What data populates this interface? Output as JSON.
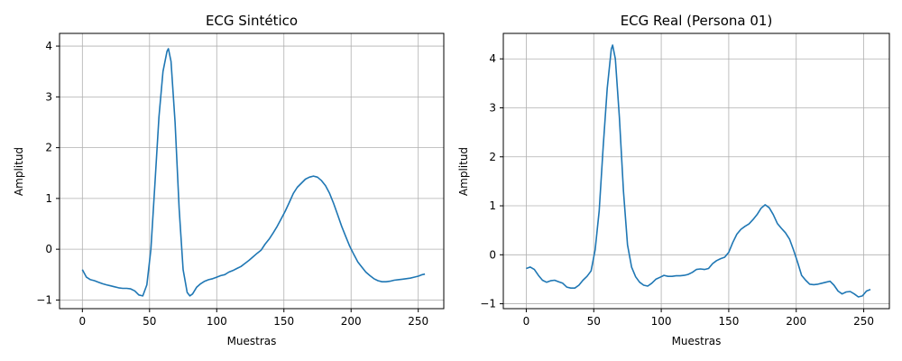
{
  "chart_data": [
    {
      "type": "line",
      "title": "ECG Sintético",
      "xlabel": "Muestras",
      "ylabel": "Amplitud",
      "xlim": [
        -17,
        269
      ],
      "ylim": [
        -1.17,
        4.25
      ],
      "xticks": [
        0,
        50,
        100,
        150,
        200,
        250
      ],
      "yticks": [
        -1,
        0,
        1,
        2,
        3,
        4
      ],
      "grid": true,
      "line_color": "#1f77b4",
      "series": [
        {
          "x": [
            0,
            3,
            6,
            9,
            12,
            15,
            18,
            21,
            24,
            27,
            30,
            33,
            36,
            39,
            42,
            45,
            48,
            51,
            54,
            57,
            60,
            63,
            64,
            66,
            69,
            72,
            75,
            78,
            80,
            82,
            85,
            88,
            91,
            94,
            97,
            100,
            103,
            106,
            109,
            112,
            115,
            118,
            121,
            124,
            127,
            130,
            133,
            136,
            139,
            142,
            145,
            148,
            151,
            154,
            157,
            160,
            163,
            166,
            169,
            172,
            175,
            178,
            181,
            184,
            187,
            190,
            193,
            196,
            199,
            202,
            205,
            208,
            211,
            214,
            217,
            220,
            223,
            226,
            229,
            232,
            235,
            238,
            241,
            244,
            247,
            250,
            253,
            255
          ],
          "y": [
            -0.4,
            -0.55,
            -0.6,
            -0.62,
            -0.65,
            -0.68,
            -0.7,
            -0.72,
            -0.74,
            -0.76,
            -0.77,
            -0.77,
            -0.78,
            -0.82,
            -0.9,
            -0.92,
            -0.7,
            0.0,
            1.3,
            2.6,
            3.5,
            3.9,
            3.95,
            3.7,
            2.5,
            0.8,
            -0.4,
            -0.85,
            -0.92,
            -0.88,
            -0.75,
            -0.68,
            -0.63,
            -0.6,
            -0.58,
            -0.55,
            -0.52,
            -0.5,
            -0.45,
            -0.42,
            -0.38,
            -0.34,
            -0.28,
            -0.22,
            -0.15,
            -0.08,
            -0.02,
            0.1,
            0.2,
            0.32,
            0.45,
            0.6,
            0.75,
            0.92,
            1.1,
            1.22,
            1.3,
            1.38,
            1.42,
            1.44,
            1.42,
            1.35,
            1.25,
            1.1,
            0.9,
            0.68,
            0.45,
            0.25,
            0.06,
            -0.1,
            -0.25,
            -0.35,
            -0.45,
            -0.52,
            -0.58,
            -0.62,
            -0.64,
            -0.64,
            -0.63,
            -0.61,
            -0.6,
            -0.59,
            -0.58,
            -0.57,
            -0.55,
            -0.53,
            -0.5,
            -0.49
          ]
        }
      ]
    },
    {
      "type": "line",
      "title": "ECG Real (Persona 01)",
      "xlabel": "Muestras",
      "ylabel": "Amplitud",
      "xlim": [
        -17,
        269
      ],
      "ylim": [
        -1.1,
        4.52
      ],
      "xticks": [
        0,
        50,
        100,
        150,
        200,
        250
      ],
      "yticks": [
        -1,
        0,
        1,
        2,
        3,
        4
      ],
      "grid": true,
      "line_color": "#1f77b4",
      "series": [
        {
          "x": [
            0,
            3,
            6,
            9,
            12,
            15,
            18,
            21,
            24,
            27,
            30,
            33,
            36,
            39,
            42,
            45,
            48,
            51,
            54,
            57,
            60,
            63,
            64,
            66,
            69,
            72,
            75,
            78,
            81,
            84,
            87,
            90,
            93,
            96,
            99,
            102,
            105,
            108,
            111,
            114,
            117,
            120,
            123,
            126,
            129,
            132,
            135,
            138,
            141,
            144,
            147,
            150,
            153,
            156,
            159,
            162,
            165,
            168,
            171,
            174,
            177,
            180,
            183,
            186,
            189,
            192,
            195,
            198,
            201,
            204,
            207,
            210,
            213,
            216,
            219,
            222,
            225,
            228,
            231,
            234,
            237,
            240,
            243,
            246,
            249,
            252,
            255
          ],
          "y": [
            -0.28,
            -0.25,
            -0.3,
            -0.42,
            -0.52,
            -0.56,
            -0.53,
            -0.52,
            -0.55,
            -0.58,
            -0.66,
            -0.68,
            -0.68,
            -0.62,
            -0.52,
            -0.44,
            -0.33,
            0.1,
            0.9,
            2.2,
            3.4,
            4.2,
            4.28,
            4.0,
            2.8,
            1.3,
            0.2,
            -0.25,
            -0.45,
            -0.56,
            -0.62,
            -0.64,
            -0.58,
            -0.5,
            -0.46,
            -0.42,
            -0.44,
            -0.44,
            -0.43,
            -0.43,
            -0.42,
            -0.4,
            -0.36,
            -0.3,
            -0.29,
            -0.3,
            -0.28,
            -0.18,
            -0.12,
            -0.08,
            -0.05,
            0.05,
            0.25,
            0.42,
            0.52,
            0.58,
            0.63,
            0.72,
            0.82,
            0.95,
            1.02,
            0.96,
            0.82,
            0.64,
            0.54,
            0.45,
            0.32,
            0.1,
            -0.15,
            -0.42,
            -0.52,
            -0.6,
            -0.61,
            -0.6,
            -0.58,
            -0.56,
            -0.54,
            -0.62,
            -0.74,
            -0.8,
            -0.76,
            -0.75,
            -0.8,
            -0.86,
            -0.84,
            -0.74,
            -0.71
          ]
        }
      ]
    }
  ]
}
